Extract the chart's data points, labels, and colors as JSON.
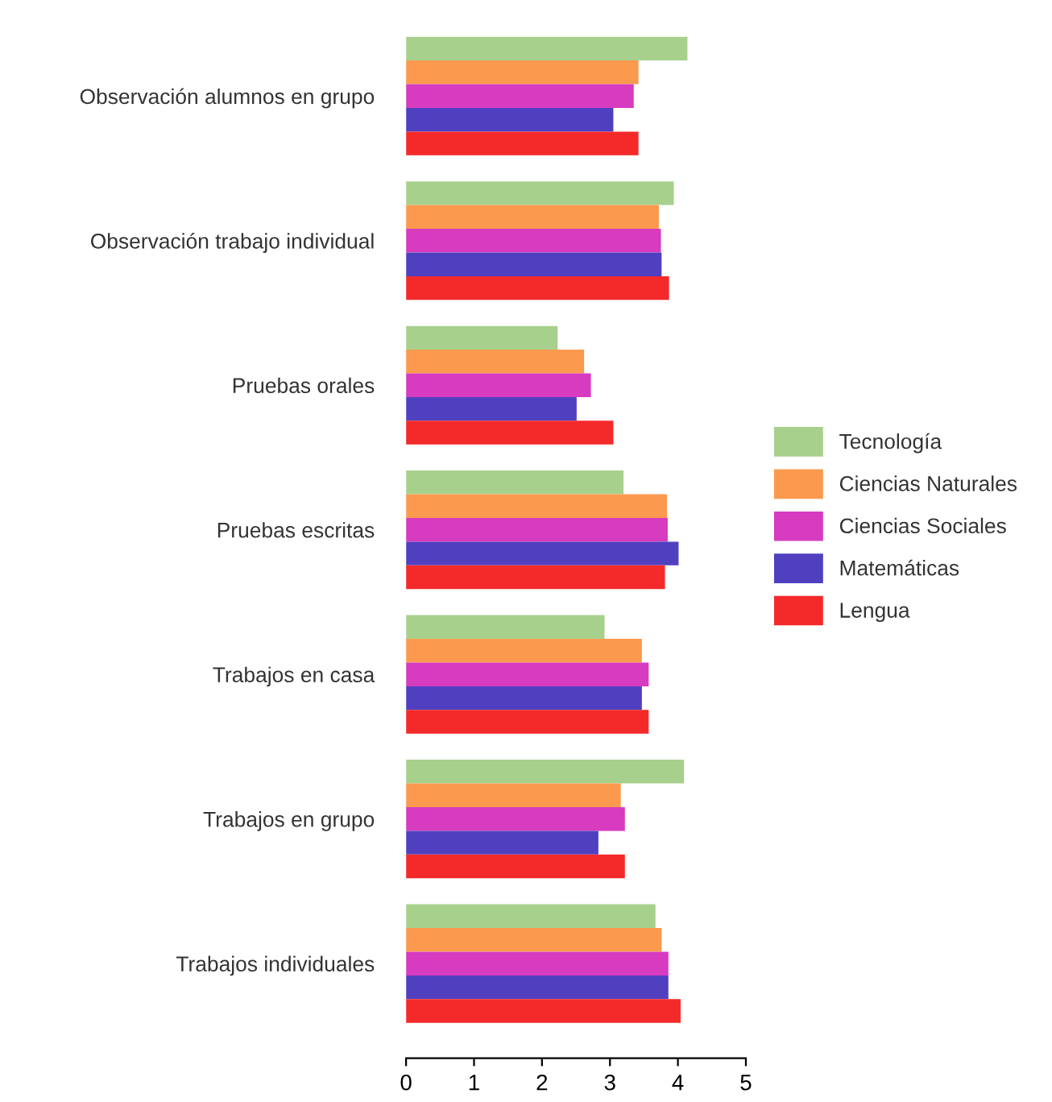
{
  "chart_data": {
    "type": "bar",
    "orientation": "horizontal",
    "categories": [
      "Observación alumnos en grupo",
      "Observación trabajo individual",
      "Pruebas orales",
      "Pruebas escritas",
      "Trabajos en casa",
      "Trabajos en grupo",
      "Trabajos individuales"
    ],
    "series": [
      {
        "name": "Tecnología",
        "color": "#a8d08d",
        "values": [
          4.14,
          3.94,
          2.23,
          3.2,
          2.92,
          4.09,
          3.67
        ]
      },
      {
        "name": "Ciencias Naturales",
        "color": "#fb9a4e",
        "values": [
          3.42,
          3.72,
          2.62,
          3.84,
          3.47,
          3.16,
          3.76
        ]
      },
      {
        "name": "Ciencias Sociales",
        "color": "#d63bc0",
        "values": [
          3.35,
          3.75,
          2.72,
          3.85,
          3.57,
          3.22,
          3.86
        ]
      },
      {
        "name": "Matemáticas",
        "color": "#5040c0",
        "values": [
          3.05,
          3.76,
          2.51,
          4.01,
          3.47,
          2.83,
          3.86
        ]
      },
      {
        "name": "Lengua",
        "color": "#f42a2a",
        "values": [
          3.42,
          3.87,
          3.05,
          3.81,
          3.57,
          3.22,
          4.04
        ]
      }
    ],
    "xlim": [
      0,
      5
    ],
    "xticks": [
      0,
      1,
      2,
      3,
      4,
      5
    ],
    "grid": false,
    "legend": "right"
  }
}
